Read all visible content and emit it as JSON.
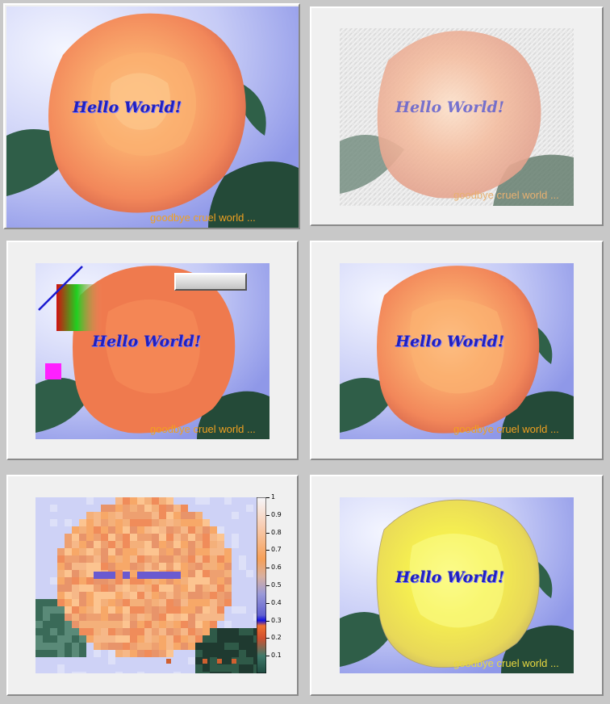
{
  "pads": {
    "p1": {
      "hello": "Hello World!",
      "goodbye": "goodbye cruel world ..."
    },
    "p2": {
      "hello": "Hello World!",
      "goodbye": "goodbye cruel world ..."
    },
    "p3": {
      "hello": "Hello World!",
      "goodbye": "goodbye cruel world ..."
    },
    "p4": {
      "hello": "Hello World!",
      "goodbye": "goodbye cruel world ..."
    },
    "p5": {
      "colorbar_ticks": [
        "1",
        "0.9",
        "0.8",
        "0.7",
        "0.6",
        "0.5",
        "0.4",
        "0.3",
        "0.2",
        "0.1"
      ]
    },
    "p6": {
      "hello": "Hello World!",
      "goodbye": "goodbye cruel world ..."
    }
  },
  "colors": {
    "rose_orange": "#f4a46a",
    "rose_yellow": "#f2ee5a",
    "hello_blue": "#2020c0",
    "goodbye_orange": "#f0a020",
    "goodbye_yellow": "#e8d840",
    "bg_lavender": "#c8ccf8",
    "leaf_green": "#2f6048"
  }
}
